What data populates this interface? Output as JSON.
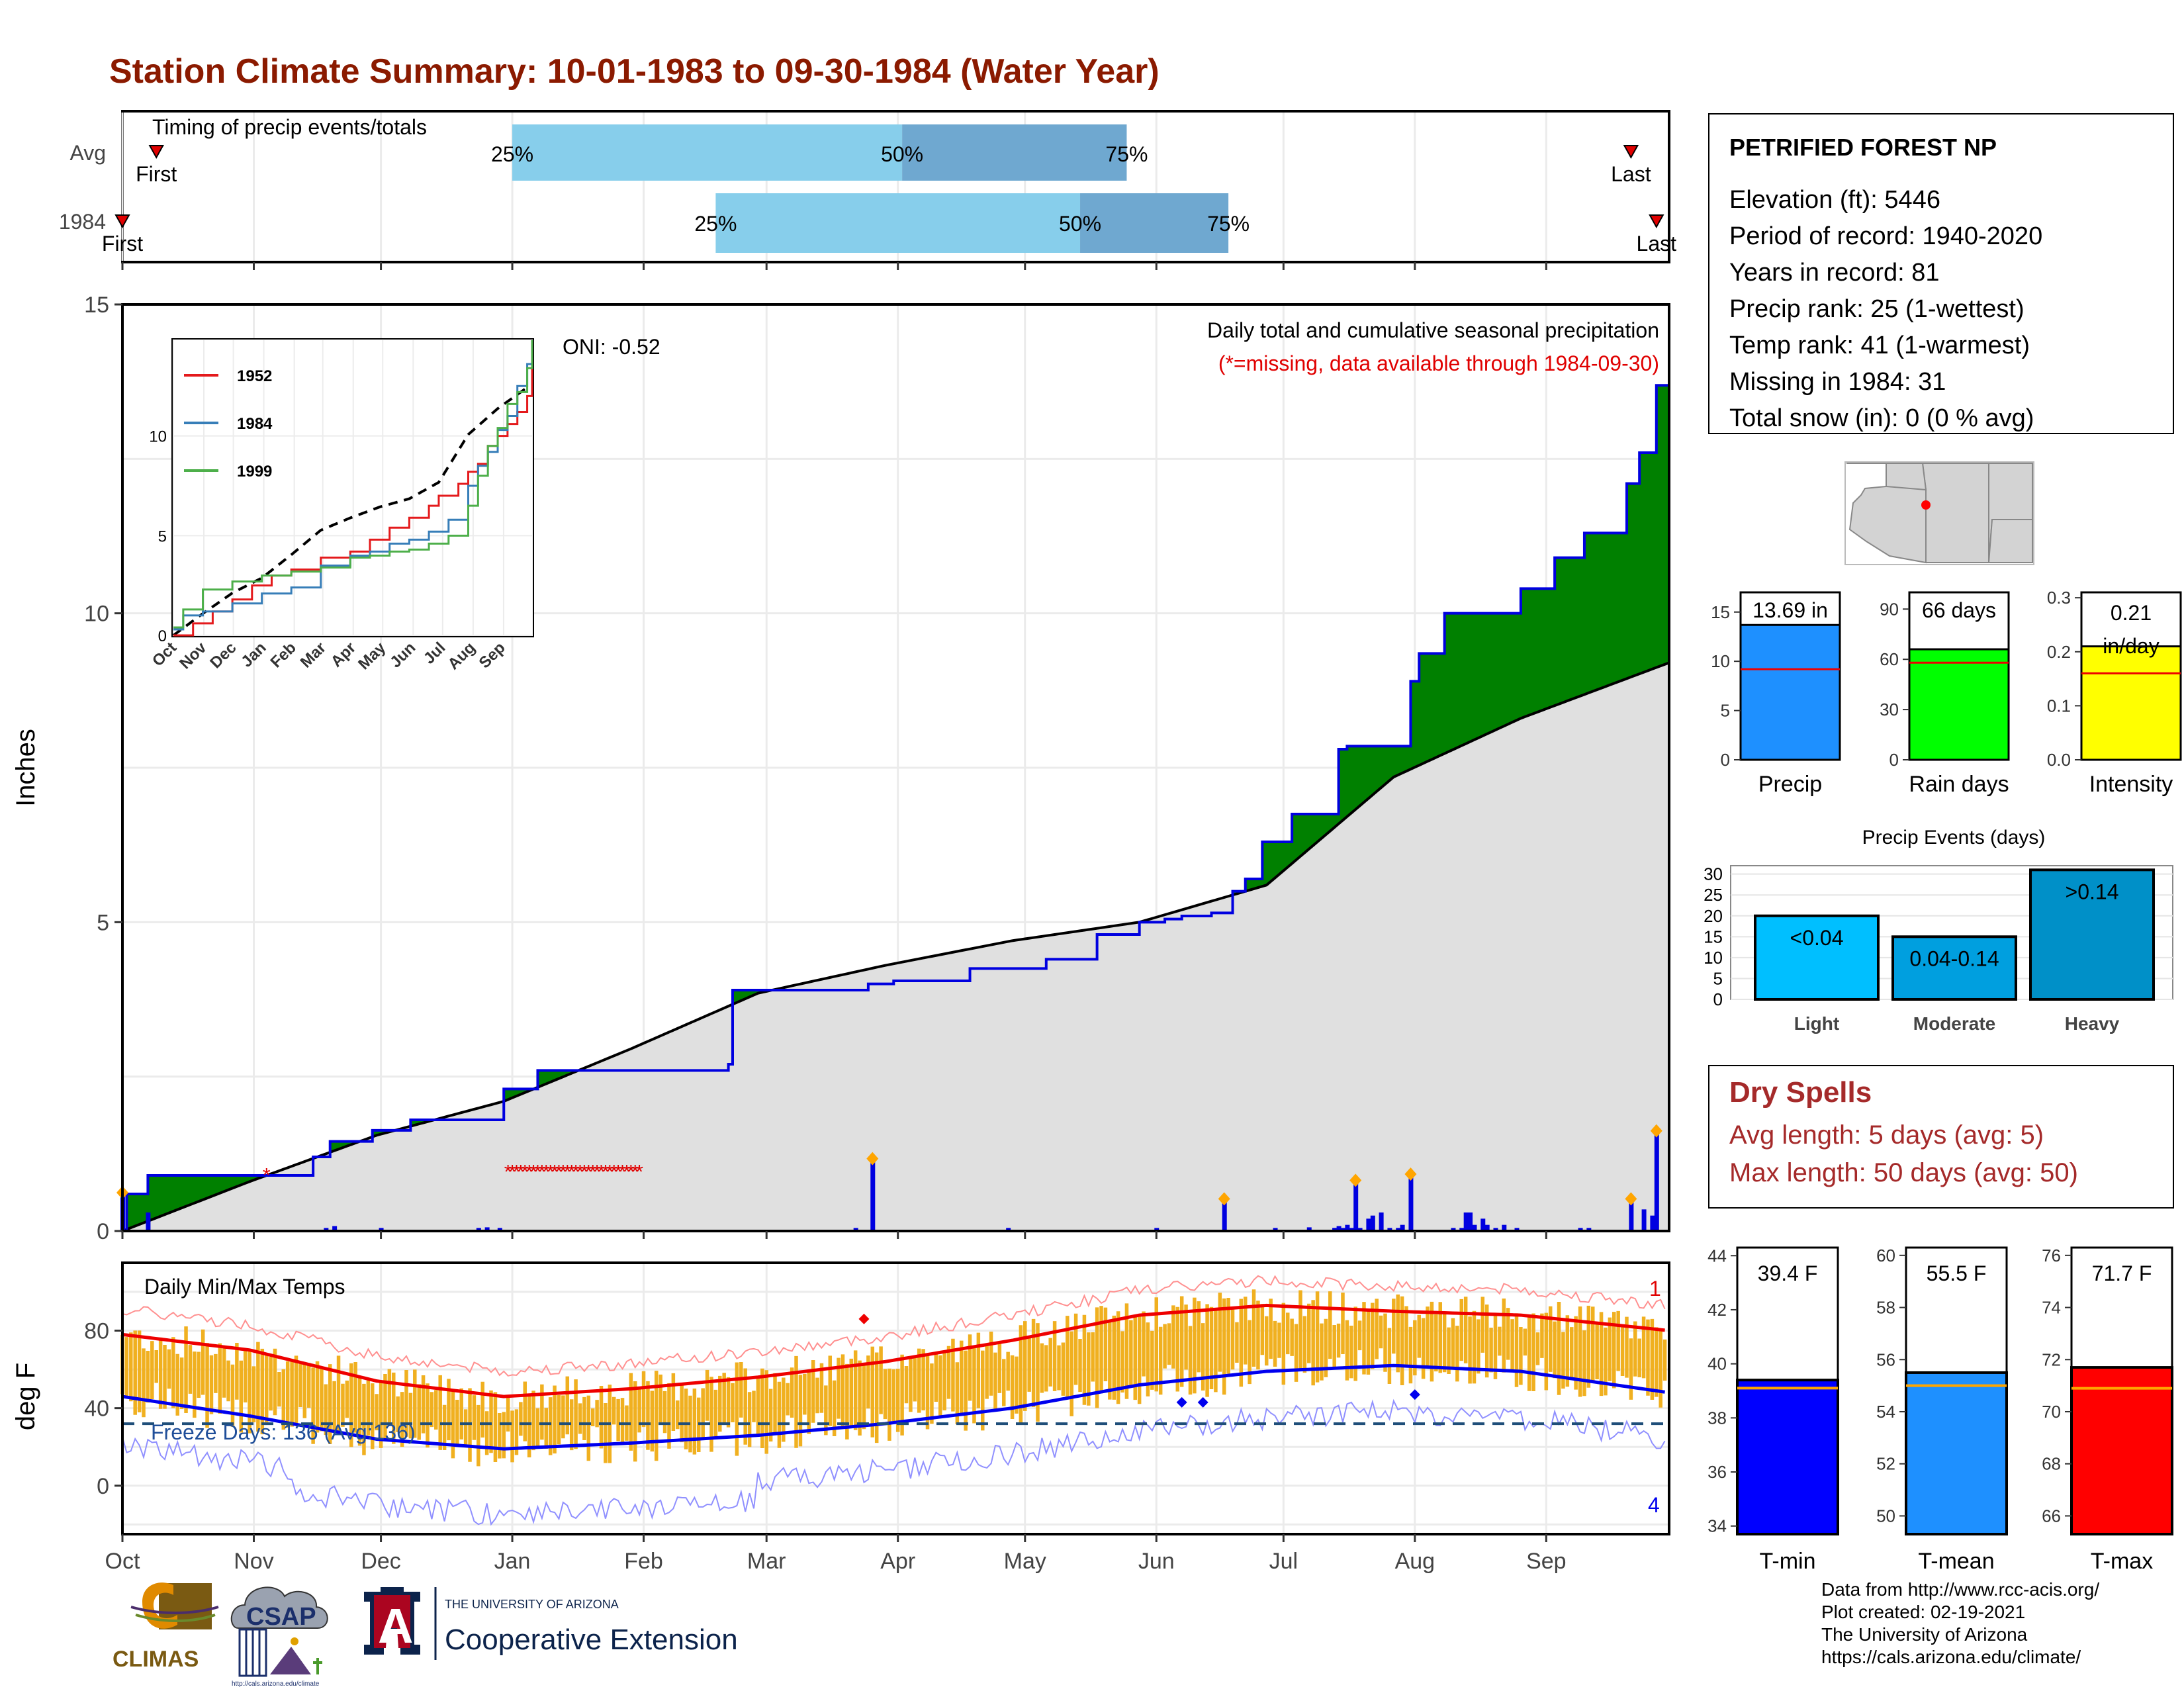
{
  "title": "Station Climate Summary: 10-01-1983 to 09-30-1984 (Water Year)",
  "timing": {
    "heading": "Timing of precip events/totals",
    "rows": [
      {
        "label": "Avg",
        "first_label": "First",
        "last_label": "Last",
        "first_day": 8,
        "p25_day": 92,
        "p50_day": 184,
        "p75_day": 237,
        "last_day": 356
      },
      {
        "label": "1984",
        "first_label": "First",
        "last_label": "Last",
        "first_day": 0,
        "p25_day": 140,
        "p50_day": 226,
        "p75_day": 261,
        "last_day": 362
      }
    ],
    "pct_labels": [
      "25%",
      "50%",
      "75%"
    ]
  },
  "chart_data": [
    {
      "type": "area",
      "title": "Daily total and cumulative seasonal precipitation",
      "subtitle": "(*=missing, data available through 1984-09-30)",
      "ylabel": "Inches",
      "ylim": [
        0,
        15
      ],
      "yticks": [
        0,
        5,
        10,
        15
      ],
      "oni_label": "ONI: -0.52",
      "x_months": [
        "Oct",
        "Nov",
        "Dec",
        "Jan",
        "Feb",
        "Mar",
        "Apr",
        "May",
        "Jun",
        "Jul",
        "Aug",
        "Sep"
      ],
      "cumulative_1984": {
        "day": [
          0,
          1,
          6,
          45,
          49,
          59,
          68,
          90,
          98,
          141,
          149,
          143,
          144,
          174,
          176,
          182,
          200,
          210,
          218,
          230,
          240,
          246,
          250,
          257,
          262,
          265,
          269,
          276,
          287,
          289,
          300,
          304,
          306,
          312,
          330,
          338,
          345,
          355,
          358,
          362,
          365
        ],
        "value": [
          0,
          0.6,
          0.9,
          1.2,
          1.45,
          1.63,
          1.8,
          2.3,
          2.6,
          2.6,
          2.6,
          2.7,
          3.9,
          3.9,
          4.0,
          4.05,
          4.25,
          4.25,
          4.4,
          4.8,
          5.0,
          5.05,
          5.1,
          5.15,
          5.5,
          5.7,
          6.3,
          6.75,
          7.8,
          7.85,
          7.85,
          8.9,
          9.35,
          10.0,
          10.4,
          10.9,
          11.3,
          12.1,
          12.6,
          13.69,
          13.69
        ]
      },
      "average_cumulative": {
        "day": [
          0,
          30,
          60,
          90,
          120,
          150,
          180,
          210,
          240,
          270,
          300,
          330,
          365
        ],
        "value": [
          0,
          0.8,
          1.55,
          2.1,
          2.95,
          3.85,
          4.3,
          4.7,
          5.0,
          5.6,
          7.35,
          8.3,
          9.2
        ]
      },
      "missing_days": [
        34,
        91,
        92,
        93,
        94,
        95,
        96,
        97,
        98,
        99,
        100,
        101,
        102,
        103,
        104,
        105,
        106,
        107,
        108,
        109,
        110,
        111,
        112,
        113,
        114,
        115,
        116,
        117,
        118,
        119,
        120,
        121,
        122
      ],
      "daily_precip": {
        "day": [
          0,
          6,
          48,
          50,
          61,
          84,
          86,
          89,
          173,
          177,
          209,
          244,
          260,
          272,
          280,
          286,
          287,
          289,
          292,
          314,
          286,
          287,
          288,
          290,
          291,
          294,
          295,
          297,
          299,
          301,
          302,
          304,
          316,
          317,
          318,
          319,
          321,
          322,
          324,
          326,
          329,
          344,
          346,
          356,
          359,
          361,
          362
        ],
        "value": [
          0.6,
          0.3,
          0.05,
          0.08,
          0.05,
          0.05,
          0.06,
          0.05,
          0.05,
          1.15,
          0.05,
          0.05,
          0.5,
          0.05,
          0.06,
          0.05,
          0.08,
          0.1,
          0.05,
          0.05,
          0.05,
          0.05,
          0.05,
          0.05,
          0.8,
          0.2,
          0.25,
          0.3,
          0.05,
          0.05,
          0.1,
          0.9,
          0.05,
          0.3,
          0.3,
          0.1,
          0.2,
          0.1,
          0.05,
          0.1,
          0.05,
          0.05,
          0.05,
          0.5,
          0.35,
          0.25,
          1.6
        ]
      }
    },
    {
      "type": "line",
      "title": "Daily Min/Max Temps",
      "ylabel": "deg F",
      "ylim": [
        -25,
        115
      ],
      "yticks": [
        0,
        40,
        80
      ],
      "freeze_label": "Freeze Days: 136 (Avg:136)",
      "freeze_line": 32,
      "record_high_count": "1",
      "record_low_count": "4",
      "avg_max": {
        "day": [
          0,
          30,
          60,
          90,
          120,
          150,
          180,
          210,
          240,
          270,
          300,
          330,
          365
        ],
        "value": [
          78,
          70,
          54,
          46,
          50,
          56,
          64,
          75,
          88,
          93,
          90,
          88,
          80
        ]
      },
      "avg_min": {
        "day": [
          0,
          30,
          60,
          90,
          120,
          150,
          180,
          210,
          240,
          270,
          300,
          330,
          365
        ],
        "value": [
          46,
          36,
          24,
          19,
          22,
          26,
          32,
          40,
          52,
          59,
          62,
          59,
          48
        ]
      }
    },
    {
      "type": "bar",
      "title": "Precip Events (days)",
      "categories": [
        "Light",
        "Moderate",
        "Heavy"
      ],
      "values": [
        20,
        15,
        31
      ],
      "bar_labels": [
        "<0.04",
        "0.04-0.14",
        ">0.14"
      ],
      "ylim": [
        0,
        32
      ],
      "yticks": [
        0,
        5,
        10,
        15,
        20,
        25,
        30
      ]
    }
  ],
  "station": {
    "name": "PETRIFIED FOREST NP",
    "lines": [
      "Elevation (ft): 5446",
      "Period of record: 1940-2020",
      "Years in record: 81",
      "Precip rank: 25 (1-wettest)",
      "Temp rank: 41 (1-warmest)",
      "Missing in 1984: 31",
      "Total snow (in): 0 (0 % avg)"
    ]
  },
  "mini_bars": [
    {
      "name": "Precip",
      "label": "13.69 in",
      "value": 13.69,
      "avg": 9.2,
      "ylim": [
        0,
        17
      ],
      "yticks": [
        0,
        5,
        10,
        15
      ],
      "color": "#1e90ff"
    },
    {
      "name": "Rain days",
      "label": "66 days",
      "value": 66,
      "avg": 58,
      "ylim": [
        0,
        100
      ],
      "yticks": [
        0,
        30,
        60,
        90
      ],
      "color": "#00ff00"
    },
    {
      "name": "Intensity",
      "label": "0.21 in/day",
      "value": 0.21,
      "avg": 0.16,
      "ylim": [
        0,
        0.31
      ],
      "yticks": [
        0.0,
        0.1,
        0.2,
        0.3
      ],
      "ytick_labels": [
        "0.0",
        "0.1",
        "0.2",
        "0.3"
      ],
      "color": "#ffff00"
    }
  ],
  "temp_bars": [
    {
      "name": "T-min",
      "label": "39.4 F",
      "value": 39.4,
      "avg": 39.1,
      "ylim": [
        33.7,
        44.3
      ],
      "yticks": [
        34,
        36,
        38,
        40,
        42,
        44
      ],
      "color": "#0000ff"
    },
    {
      "name": "T-mean",
      "label": "55.5 F",
      "value": 55.5,
      "avg": 55.0,
      "ylim": [
        49.3,
        60.3
      ],
      "yticks": [
        50,
        52,
        54,
        56,
        58,
        60
      ],
      "color": "#1e90ff"
    },
    {
      "name": "T-max",
      "label": "71.7 F",
      "value": 71.7,
      "avg": 70.9,
      "ylim": [
        65.3,
        76.3
      ],
      "yticks": [
        66,
        68,
        70,
        72,
        74,
        76
      ],
      "color": "#ff0000"
    }
  ],
  "inset_legend": [
    "1952",
    "1984",
    "1999"
  ],
  "inset_colors": [
    "#e41a1c",
    "#377eb8",
    "#4daf4a"
  ],
  "inset_yticks": [
    "0",
    "5",
    "10"
  ],
  "dry_spells": {
    "title": "Dry Spells",
    "avg_line": "Avg length: 5 days (avg: 5)",
    "max_line": "Max length: 50 days (avg: 50)"
  },
  "logos": {
    "climas": "CLIMAS",
    "csap": "CSAP",
    "csap_url": "http://cals.arizona.edu/climate",
    "ua_small": "THE UNIVERSITY OF ARIZONA",
    "ua_big": "Cooperative Extension",
    "ua_letter": "A"
  },
  "footer": [
    "Data from http://www.rcc-acis.org/",
    "Plot created: 02-19-2021",
    "The University of Arizona",
    "https://cals.arizona.edu/climate/"
  ]
}
